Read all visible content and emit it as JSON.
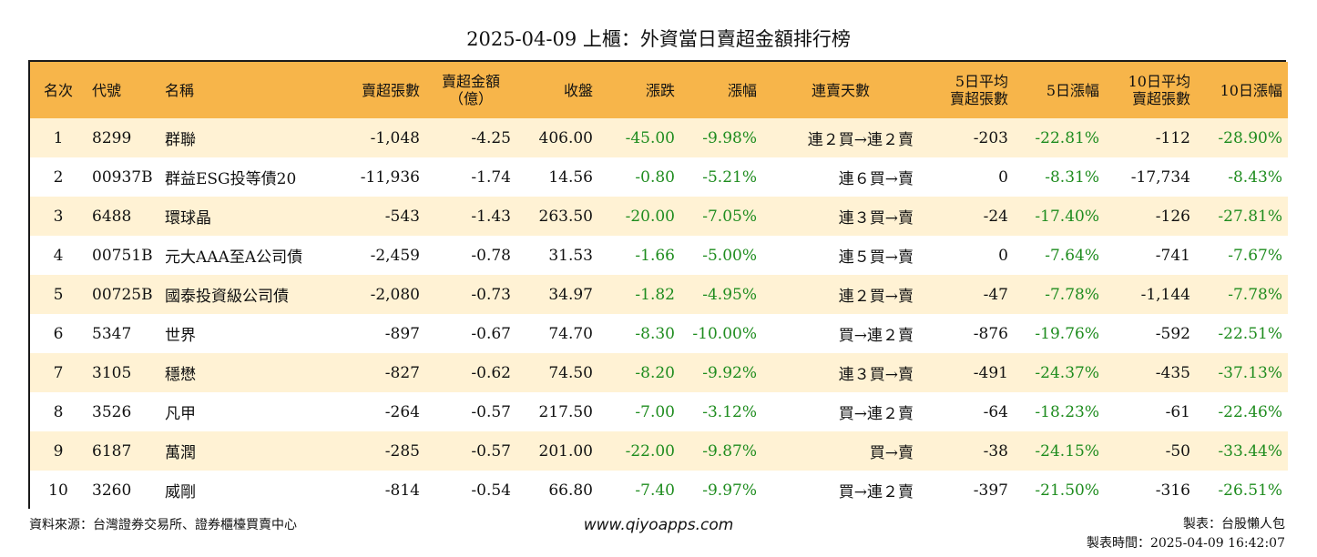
{
  "title": "2025-04-09 上櫃：外資當日賣超金額排行榜",
  "headers": [
    "名次",
    "代號",
    "名稱",
    "賣超張數",
    "賣超金額\n（億）",
    "收盤",
    "漲跌",
    "漲幅",
    "連賣天數",
    "5日平均\n賣超張數",
    "5日漲幅",
    "10日平均\n賣超張數",
    "10日漲幅"
  ],
  "rows": [
    [
      "1",
      "8299",
      "群聯",
      "-1,048",
      "-4.25",
      "406.00",
      "-45.00",
      "-9.98%",
      "連２買→連２賣",
      "-203",
      "-22.81%",
      "-112",
      "-28.90%"
    ],
    [
      "2",
      "00937B",
      "群益ESG投等債20",
      "-11,936",
      "-1.74",
      "14.56",
      "-0.80",
      "-5.21%",
      "連６買→賣",
      "0",
      "-8.31%",
      "-17,734",
      "-8.43%"
    ],
    [
      "3",
      "6488",
      "環球晶",
      "-543",
      "-1.43",
      "263.50",
      "-20.00",
      "-7.05%",
      "連３買→賣",
      "-24",
      "-17.40%",
      "-126",
      "-27.81%"
    ],
    [
      "4",
      "00751B",
      "元大AAA至A公司債",
      "-2,459",
      "-0.78",
      "31.53",
      "-1.66",
      "-5.00%",
      "連５買→賣",
      "0",
      "-7.64%",
      "-741",
      "-7.67%"
    ],
    [
      "5",
      "00725B",
      "國泰投資級公司債",
      "-2,080",
      "-0.73",
      "34.97",
      "-1.82",
      "-4.95%",
      "連２買→賣",
      "-47",
      "-7.78%",
      "-1,144",
      "-7.78%"
    ],
    [
      "6",
      "5347",
      "世界",
      "-897",
      "-0.67",
      "74.70",
      "-8.30",
      "-10.00%",
      "買→連２賣",
      "-876",
      "-19.76%",
      "-592",
      "-22.51%"
    ],
    [
      "7",
      "3105",
      "穩懋",
      "-827",
      "-0.62",
      "74.50",
      "-8.20",
      "-9.92%",
      "連３買→賣",
      "-491",
      "-24.37%",
      "-435",
      "-37.13%"
    ],
    [
      "8",
      "3526",
      "凡甲",
      "-264",
      "-0.57",
      "217.50",
      "-7.00",
      "-3.12%",
      "買→連２賣",
      "-64",
      "-18.23%",
      "-61",
      "-22.46%"
    ],
    [
      "9",
      "6187",
      "萬潤",
      "-285",
      "-0.57",
      "201.00",
      "-22.00",
      "-9.87%",
      "買→賣",
      "-38",
      "-24.15%",
      "-50",
      "-33.44%"
    ],
    [
      "10",
      "3260",
      "威剛",
      "-814",
      "-0.54",
      "66.80",
      "-7.40",
      "-9.97%",
      "買→連２賣",
      "-397",
      "-21.50%",
      "-316",
      "-26.51%"
    ]
  ],
  "footer": {
    "source": "資料來源：台灣證券交易所、證券櫃檯買賣中心",
    "website": "www.qiyoapps.com",
    "author": "製表：台股懶人包",
    "made_time": "製表時間：2025-04-09 16:42:07"
  },
  "colors": {
    "header_bg": "#f7b54a",
    "row_alt_bg": "#fff2d4",
    "change_green": "#1e8c1e"
  }
}
